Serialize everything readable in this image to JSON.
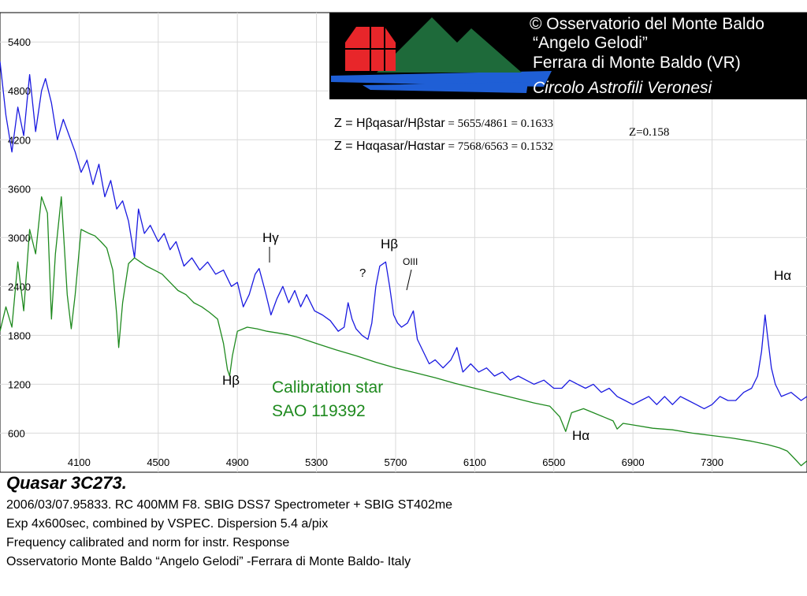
{
  "banner": {
    "line1": "© Osservatorio del Monte Baldo",
    "line2": "“Angelo Gelodi”",
    "line3": "Ferrara di Monte Baldo (VR)",
    "line4": "Circolo Astrofili Veronesi",
    "background": "#000000",
    "logo_red": "#e8262a",
    "logo_green": "#1e6a3a",
    "logo_blue": "#1f5fd6"
  },
  "formulas": {
    "hbeta_prefix": "Z = Hβqasar/Hβstar",
    "hbeta_value": " = 5655/4861 =  0.1633",
    "halpha_prefix": "Z = Hαqasar/Hαstar",
    "halpha_value": " = 7568/6563 = 0.1532",
    "z_result": "Z=0.158"
  },
  "annotations": {
    "hgamma_quasar": "Hγ",
    "question": "?",
    "hbeta_quasar": "Hβ",
    "oiii": "OIII",
    "halpha_quasar": "Hα",
    "hbeta_star": "Hβ",
    "halpha_star": "Hα",
    "star_label_line1": "Calibration star",
    "star_label_line2": "SAO 119392"
  },
  "caption": {
    "title": "Quasar 3C273.",
    "line1": "2006/03/07.95833. RC 400MM F8. SBIG DSS7 Spectrometer + SBIG ST402me",
    "line2": "Exp 4x600sec, combined by VSPEC. Dispersion 5.4 a/pix",
    "line3": "Frequency calibrated and norm for instr. Response",
    "line4": "Osservatorio Monte Baldo “Angelo Gelodi” -Ferrara di Monte Baldo- Italy"
  },
  "chart_data": {
    "type": "line",
    "title": "",
    "xlabel": "",
    "ylabel": "",
    "xlim": [
      3700,
      7780
    ],
    "ylim": [
      120,
      5760
    ],
    "x_ticks": [
      4100,
      4500,
      4900,
      5300,
      5700,
      6100,
      6500,
      6900,
      7300
    ],
    "y_ticks": [
      600,
      1200,
      1800,
      2400,
      3000,
      3600,
      4200,
      4800,
      5400
    ],
    "grid": true,
    "series": [
      {
        "name": "Quasar 3C273",
        "color": "#1a1ae0",
        "points": [
          [
            3700,
            5160
          ],
          [
            3730,
            4500
          ],
          [
            3760,
            4050
          ],
          [
            3790,
            4600
          ],
          [
            3820,
            4250
          ],
          [
            3850,
            5000
          ],
          [
            3880,
            4300
          ],
          [
            3910,
            4800
          ],
          [
            3930,
            4950
          ],
          [
            3960,
            4650
          ],
          [
            3990,
            4200
          ],
          [
            4020,
            4450
          ],
          [
            4050,
            4250
          ],
          [
            4080,
            4050
          ],
          [
            4110,
            3800
          ],
          [
            4140,
            3950
          ],
          [
            4170,
            3650
          ],
          [
            4200,
            3900
          ],
          [
            4230,
            3500
          ],
          [
            4260,
            3700
          ],
          [
            4290,
            3350
          ],
          [
            4320,
            3450
          ],
          [
            4350,
            3200
          ],
          [
            4380,
            2750
          ],
          [
            4400,
            3350
          ],
          [
            4430,
            3050
          ],
          [
            4460,
            3150
          ],
          [
            4500,
            2950
          ],
          [
            4530,
            3050
          ],
          [
            4560,
            2850
          ],
          [
            4590,
            2950
          ],
          [
            4630,
            2650
          ],
          [
            4670,
            2750
          ],
          [
            4710,
            2600
          ],
          [
            4750,
            2700
          ],
          [
            4790,
            2550
          ],
          [
            4830,
            2600
          ],
          [
            4870,
            2400
          ],
          [
            4900,
            2450
          ],
          [
            4930,
            2150
          ],
          [
            4960,
            2300
          ],
          [
            4990,
            2550
          ],
          [
            5010,
            2620
          ],
          [
            5040,
            2350
          ],
          [
            5070,
            2050
          ],
          [
            5100,
            2250
          ],
          [
            5130,
            2400
          ],
          [
            5160,
            2200
          ],
          [
            5190,
            2350
          ],
          [
            5220,
            2150
          ],
          [
            5250,
            2300
          ],
          [
            5290,
            2100
          ],
          [
            5330,
            2050
          ],
          [
            5370,
            1980
          ],
          [
            5410,
            1850
          ],
          [
            5440,
            1900
          ],
          [
            5460,
            2200
          ],
          [
            5480,
            2000
          ],
          [
            5500,
            1880
          ],
          [
            5530,
            1800
          ],
          [
            5560,
            1750
          ],
          [
            5580,
            1950
          ],
          [
            5600,
            2400
          ],
          [
            5620,
            2650
          ],
          [
            5650,
            2700
          ],
          [
            5670,
            2400
          ],
          [
            5690,
            2050
          ],
          [
            5710,
            1950
          ],
          [
            5730,
            1900
          ],
          [
            5760,
            1950
          ],
          [
            5790,
            2100
          ],
          [
            5810,
            1750
          ],
          [
            5840,
            1600
          ],
          [
            5870,
            1450
          ],
          [
            5900,
            1500
          ],
          [
            5940,
            1400
          ],
          [
            5980,
            1500
          ],
          [
            6010,
            1650
          ],
          [
            6040,
            1350
          ],
          [
            6080,
            1450
          ],
          [
            6120,
            1350
          ],
          [
            6160,
            1400
          ],
          [
            6200,
            1300
          ],
          [
            6240,
            1350
          ],
          [
            6280,
            1250
          ],
          [
            6320,
            1300
          ],
          [
            6360,
            1250
          ],
          [
            6400,
            1200
          ],
          [
            6450,
            1250
          ],
          [
            6500,
            1150
          ],
          [
            6540,
            1150
          ],
          [
            6580,
            1250
          ],
          [
            6620,
            1200
          ],
          [
            6660,
            1150
          ],
          [
            6700,
            1200
          ],
          [
            6740,
            1100
          ],
          [
            6780,
            1150
          ],
          [
            6820,
            1050
          ],
          [
            6860,
            1000
          ],
          [
            6900,
            950
          ],
          [
            6940,
            1000
          ],
          [
            6980,
            1050
          ],
          [
            7020,
            950
          ],
          [
            7060,
            1050
          ],
          [
            7100,
            950
          ],
          [
            7140,
            1050
          ],
          [
            7180,
            1000
          ],
          [
            7220,
            950
          ],
          [
            7260,
            900
          ],
          [
            7300,
            950
          ],
          [
            7340,
            1050
          ],
          [
            7380,
            1000
          ],
          [
            7420,
            1000
          ],
          [
            7460,
            1100
          ],
          [
            7500,
            1150
          ],
          [
            7530,
            1300
          ],
          [
            7550,
            1600
          ],
          [
            7568,
            2050
          ],
          [
            7580,
            1800
          ],
          [
            7600,
            1400
          ],
          [
            7620,
            1200
          ],
          [
            7650,
            1050
          ],
          [
            7700,
            1100
          ],
          [
            7750,
            1000
          ],
          [
            7780,
            1050
          ]
        ]
      },
      {
        "name": "Calibration star SAO 119392",
        "color": "#1f8a1f",
        "points": [
          [
            3700,
            1850
          ],
          [
            3730,
            2150
          ],
          [
            3760,
            1900
          ],
          [
            3790,
            2700
          ],
          [
            3820,
            2100
          ],
          [
            3850,
            3100
          ],
          [
            3880,
            2800
          ],
          [
            3910,
            3500
          ],
          [
            3940,
            3300
          ],
          [
            3960,
            2000
          ],
          [
            3980,
            2800
          ],
          [
            4010,
            3500
          ],
          [
            4040,
            2300
          ],
          [
            4060,
            1880
          ],
          [
            4080,
            2300
          ],
          [
            4110,
            3100
          ],
          [
            4150,
            3050
          ],
          [
            4180,
            3020
          ],
          [
            4210,
            2950
          ],
          [
            4240,
            2870
          ],
          [
            4270,
            2600
          ],
          [
            4290,
            2050
          ],
          [
            4300,
            1650
          ],
          [
            4320,
            2200
          ],
          [
            4350,
            2680
          ],
          [
            4380,
            2750
          ],
          [
            4410,
            2700
          ],
          [
            4440,
            2650
          ],
          [
            4480,
            2600
          ],
          [
            4520,
            2550
          ],
          [
            4560,
            2450
          ],
          [
            4600,
            2350
          ],
          [
            4640,
            2300
          ],
          [
            4680,
            2200
          ],
          [
            4720,
            2150
          ],
          [
            4760,
            2080
          ],
          [
            4800,
            2000
          ],
          [
            4830,
            1700
          ],
          [
            4850,
            1380
          ],
          [
            4861,
            1300
          ],
          [
            4875,
            1550
          ],
          [
            4900,
            1850
          ],
          [
            4950,
            1900
          ],
          [
            5000,
            1880
          ],
          [
            5050,
            1850
          ],
          [
            5100,
            1830
          ],
          [
            5150,
            1810
          ],
          [
            5200,
            1780
          ],
          [
            5250,
            1740
          ],
          [
            5300,
            1700
          ],
          [
            5400,
            1620
          ],
          [
            5500,
            1550
          ],
          [
            5600,
            1470
          ],
          [
            5700,
            1400
          ],
          [
            5800,
            1340
          ],
          [
            5900,
            1280
          ],
          [
            6000,
            1210
          ],
          [
            6100,
            1150
          ],
          [
            6200,
            1090
          ],
          [
            6300,
            1030
          ],
          [
            6400,
            970
          ],
          [
            6480,
            930
          ],
          [
            6530,
            800
          ],
          [
            6560,
            620
          ],
          [
            6590,
            850
          ],
          [
            6650,
            900
          ],
          [
            6700,
            850
          ],
          [
            6750,
            800
          ],
          [
            6800,
            750
          ],
          [
            6820,
            650
          ],
          [
            6850,
            720
          ],
          [
            6900,
            700
          ],
          [
            7000,
            660
          ],
          [
            7100,
            640
          ],
          [
            7200,
            600
          ],
          [
            7300,
            570
          ],
          [
            7400,
            540
          ],
          [
            7500,
            500
          ],
          [
            7580,
            460
          ],
          [
            7640,
            420
          ],
          [
            7680,
            380
          ],
          [
            7720,
            280
          ],
          [
            7750,
            200
          ],
          [
            7780,
            260
          ]
        ]
      }
    ]
  }
}
